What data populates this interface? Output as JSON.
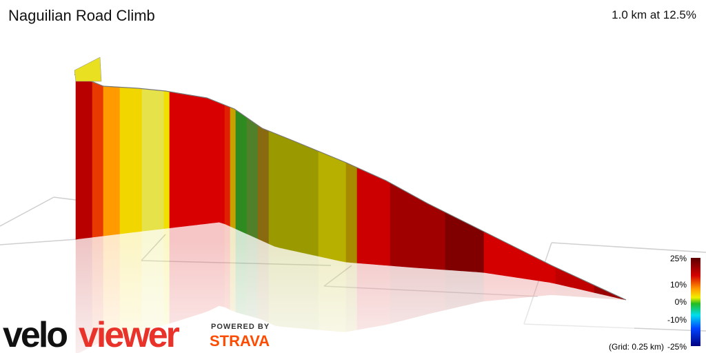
{
  "header": {
    "title": "Naguilian Road Climb",
    "summary": "1.0 km at 12.5%"
  },
  "legend": {
    "labels": [
      "25%",
      "10%",
      "0%",
      "-10%",
      "-25%"
    ],
    "grid_note": "(Grid: 0.25 km)"
  },
  "logos": {
    "brand_velo": "velo",
    "brand_viewer": "viewer",
    "powered_by": "POWERED BY",
    "strava": "STRAVA"
  }
}
